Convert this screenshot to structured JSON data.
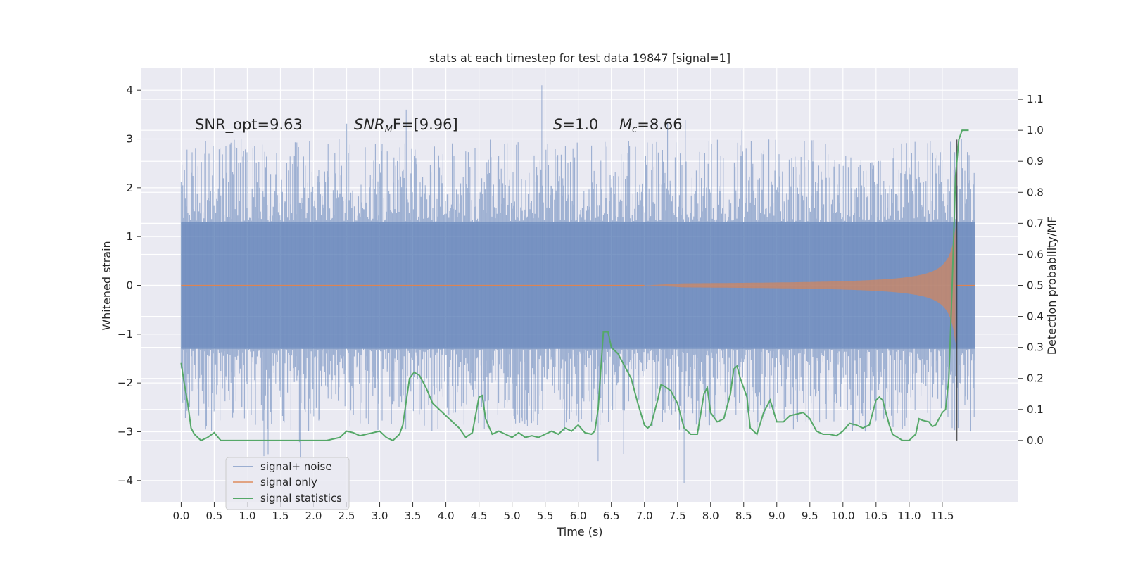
{
  "chart_data": {
    "type": "line",
    "title": "stats at each timestep for test data 19847 [signal=1]",
    "xlabel": "Time (s)",
    "ylabel_left": "Whitened strain",
    "ylabel_right": "Detection probability/MF",
    "xlim": [
      -0.6,
      12.65
    ],
    "ylim_left": [
      -4.45,
      4.45
    ],
    "ylim_right": [
      -0.2,
      1.2
    ],
    "xticks": [
      "0.0",
      "0.5",
      "1.0",
      "1.5",
      "2.0",
      "2.5",
      "3.0",
      "3.5",
      "4.0",
      "4.5",
      "5.0",
      "5.5",
      "6.0",
      "6.5",
      "7.0",
      "7.5",
      "8.0",
      "8.5",
      "9.0",
      "9.5",
      "10.0",
      "10.5",
      "11.0",
      "11.5"
    ],
    "yticks_left": [
      "4",
      "3",
      "2",
      "1",
      "0",
      "−1",
      "−2",
      "−3",
      "−4"
    ],
    "yticks_right": [
      "1.1",
      "1.0",
      "0.9",
      "0.8",
      "0.7",
      "0.6",
      "0.5",
      "0.4",
      "0.3",
      "0.2",
      "0.1",
      "0.0"
    ],
    "grid": true,
    "legend_position": "lower-left",
    "annotations": {
      "snr_opt": "SNR_opt=9.63",
      "snr_mf_prefix": "SNR",
      "snr_mf_sub": "M",
      "snr_mf_suffix": "F=[9.96]",
      "s_label": "S",
      "s_value": "=1.0",
      "mc_label": "M",
      "mc_sub": "c",
      "mc_value": "=8.66"
    },
    "series": [
      {
        "name": "signal+ noise",
        "color": "#4c72b0",
        "opacity": 0.5,
        "t_range": [
          0,
          12.0
        ],
        "envelope": 1.3,
        "peak_max": 4.1,
        "peak_min": -4.05
      },
      {
        "name": "signal only",
        "color": "#dd8452",
        "t_range": [
          7.0,
          11.7
        ],
        "amplitude_at_end": 1.2,
        "final_time": 11.72
      },
      {
        "name": "signal statistics",
        "color": "#55a868",
        "axis": "right",
        "points": [
          [
            0.0,
            0.25
          ],
          [
            0.05,
            0.18
          ],
          [
            0.1,
            0.12
          ],
          [
            0.15,
            0.04
          ],
          [
            0.2,
            0.02
          ],
          [
            0.3,
            0.0
          ],
          [
            0.4,
            0.01
          ],
          [
            0.5,
            0.025
          ],
          [
            0.6,
            0.0
          ],
          [
            0.8,
            0.0
          ],
          [
            1.0,
            0.0
          ],
          [
            1.2,
            0.0
          ],
          [
            1.5,
            0.0
          ],
          [
            1.8,
            0.0
          ],
          [
            2.0,
            0.0
          ],
          [
            2.2,
            0.0
          ],
          [
            2.4,
            0.01
          ],
          [
            2.5,
            0.03
          ],
          [
            2.6,
            0.025
          ],
          [
            2.7,
            0.015
          ],
          [
            2.9,
            0.025
          ],
          [
            3.0,
            0.03
          ],
          [
            3.1,
            0.01
          ],
          [
            3.2,
            0.0
          ],
          [
            3.3,
            0.02
          ],
          [
            3.35,
            0.05
          ],
          [
            3.45,
            0.2
          ],
          [
            3.52,
            0.22
          ],
          [
            3.6,
            0.21
          ],
          [
            3.7,
            0.17
          ],
          [
            3.8,
            0.12
          ],
          [
            4.0,
            0.08
          ],
          [
            4.1,
            0.06
          ],
          [
            4.2,
            0.04
          ],
          [
            4.3,
            0.01
          ],
          [
            4.4,
            0.025
          ],
          [
            4.5,
            0.14
          ],
          [
            4.55,
            0.145
          ],
          [
            4.6,
            0.07
          ],
          [
            4.7,
            0.02
          ],
          [
            4.8,
            0.03
          ],
          [
            4.9,
            0.02
          ],
          [
            5.0,
            0.01
          ],
          [
            5.1,
            0.025
          ],
          [
            5.2,
            0.01
          ],
          [
            5.3,
            0.015
          ],
          [
            5.4,
            0.01
          ],
          [
            5.5,
            0.02
          ],
          [
            5.6,
            0.03
          ],
          [
            5.7,
            0.02
          ],
          [
            5.8,
            0.04
          ],
          [
            5.9,
            0.03
          ],
          [
            6.0,
            0.05
          ],
          [
            6.1,
            0.025
          ],
          [
            6.2,
            0.02
          ],
          [
            6.25,
            0.03
          ],
          [
            6.3,
            0.1
          ],
          [
            6.38,
            0.35
          ],
          [
            6.45,
            0.35
          ],
          [
            6.5,
            0.3
          ],
          [
            6.6,
            0.28
          ],
          [
            6.7,
            0.24
          ],
          [
            6.8,
            0.2
          ],
          [
            6.9,
            0.12
          ],
          [
            7.0,
            0.05
          ],
          [
            7.05,
            0.04
          ],
          [
            7.1,
            0.05
          ],
          [
            7.2,
            0.13
          ],
          [
            7.25,
            0.18
          ],
          [
            7.3,
            0.175
          ],
          [
            7.4,
            0.16
          ],
          [
            7.5,
            0.12
          ],
          [
            7.6,
            0.04
          ],
          [
            7.7,
            0.02
          ],
          [
            7.8,
            0.02
          ],
          [
            7.9,
            0.15
          ],
          [
            7.95,
            0.17
          ],
          [
            8.0,
            0.09
          ],
          [
            8.1,
            0.06
          ],
          [
            8.2,
            0.07
          ],
          [
            8.3,
            0.15
          ],
          [
            8.35,
            0.23
          ],
          [
            8.4,
            0.24
          ],
          [
            8.45,
            0.2
          ],
          [
            8.55,
            0.14
          ],
          [
            8.6,
            0.04
          ],
          [
            8.7,
            0.02
          ],
          [
            8.8,
            0.09
          ],
          [
            8.9,
            0.13
          ],
          [
            9.0,
            0.06
          ],
          [
            9.1,
            0.06
          ],
          [
            9.2,
            0.08
          ],
          [
            9.4,
            0.09
          ],
          [
            9.5,
            0.07
          ],
          [
            9.6,
            0.03
          ],
          [
            9.7,
            0.02
          ],
          [
            9.8,
            0.02
          ],
          [
            9.9,
            0.015
          ],
          [
            10.0,
            0.03
          ],
          [
            10.1,
            0.055
          ],
          [
            10.2,
            0.05
          ],
          [
            10.3,
            0.04
          ],
          [
            10.4,
            0.05
          ],
          [
            10.5,
            0.13
          ],
          [
            10.55,
            0.14
          ],
          [
            10.6,
            0.13
          ],
          [
            10.7,
            0.05
          ],
          [
            10.75,
            0.02
          ],
          [
            10.9,
            0.0
          ],
          [
            11.0,
            0.0
          ],
          [
            11.1,
            0.02
          ],
          [
            11.15,
            0.07
          ],
          [
            11.2,
            0.065
          ],
          [
            11.3,
            0.06
          ],
          [
            11.35,
            0.045
          ],
          [
            11.4,
            0.05
          ],
          [
            11.5,
            0.09
          ],
          [
            11.55,
            0.1
          ],
          [
            11.6,
            0.2
          ],
          [
            11.65,
            0.5
          ],
          [
            11.7,
            0.85
          ],
          [
            11.75,
            0.97
          ],
          [
            11.8,
            1.0
          ],
          [
            11.9,
            1.0
          ]
        ]
      }
    ]
  }
}
